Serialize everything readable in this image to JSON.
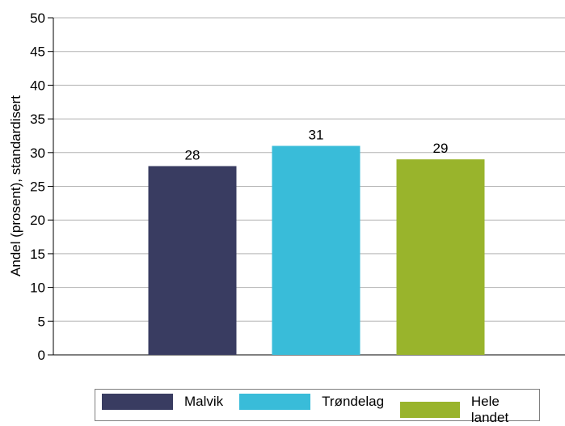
{
  "chart_data": {
    "type": "bar",
    "categories": [
      "Malvik",
      "Trøndelag",
      "Hele landet"
    ],
    "values": [
      28,
      31,
      29
    ],
    "data_labels": [
      "28",
      "31",
      "29"
    ],
    "colors": [
      "#393c61",
      "#39bcd9",
      "#99b42c"
    ],
    "ylabel": "Andel (prosent), standardisert",
    "ylim": [
      0,
      50
    ],
    "yticks": [
      0,
      5,
      10,
      15,
      20,
      25,
      30,
      35,
      40,
      45,
      50
    ],
    "grid": true,
    "legend": "bottom"
  }
}
